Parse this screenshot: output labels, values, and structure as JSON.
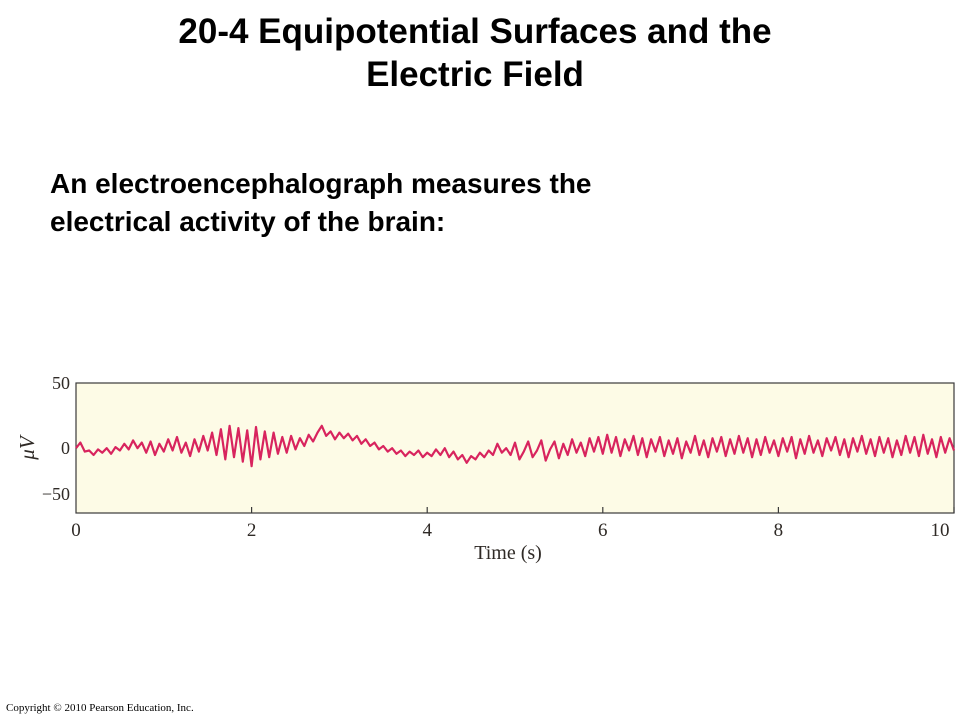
{
  "slide": {
    "title_line1": "20-4 Equipotential Surfaces and the",
    "title_line2": "Electric Field",
    "body_line1": "An electroencephalograph measures the",
    "body_line2": "electrical activity of the brain:",
    "copyright": "Copyright © 2010 Pearson Education, Inc."
  },
  "chart_data": {
    "type": "line",
    "xlabel": "Time (s)",
    "ylabel": "μV",
    "xlim": [
      0,
      10
    ],
    "ylim": [
      -50,
      50
    ],
    "xticks": [
      "0",
      "2",
      "4",
      "6",
      "8",
      "10"
    ],
    "yticks": [
      "50",
      "0",
      "−50"
    ],
    "grid": false,
    "legend": "none",
    "plot_background": "#fdfbe6",
    "line_color": "#d8245e",
    "series": [
      {
        "values": [
          [
            0.0,
            -2
          ],
          [
            0.05,
            3
          ],
          [
            0.1,
            -5
          ],
          [
            0.15,
            -4
          ],
          [
            0.2,
            -8
          ],
          [
            0.25,
            -3
          ],
          [
            0.3,
            -6
          ],
          [
            0.35,
            -2
          ],
          [
            0.4,
            -7
          ],
          [
            0.45,
            -1
          ],
          [
            0.5,
            -4
          ],
          [
            0.55,
            2
          ],
          [
            0.6,
            -3
          ],
          [
            0.65,
            5
          ],
          [
            0.7,
            -2
          ],
          [
            0.75,
            3
          ],
          [
            0.8,
            -6
          ],
          [
            0.85,
            4
          ],
          [
            0.9,
            -8
          ],
          [
            0.95,
            2
          ],
          [
            1.0,
            -5
          ],
          [
            1.05,
            6
          ],
          [
            1.1,
            -4
          ],
          [
            1.15,
            8
          ],
          [
            1.2,
            -6
          ],
          [
            1.25,
            3
          ],
          [
            1.3,
            -9
          ],
          [
            1.35,
            6
          ],
          [
            1.4,
            -5
          ],
          [
            1.45,
            9
          ],
          [
            1.5,
            -4
          ],
          [
            1.55,
            12
          ],
          [
            1.6,
            -8
          ],
          [
            1.65,
            15
          ],
          [
            1.7,
            -12
          ],
          [
            1.75,
            18
          ],
          [
            1.8,
            -10
          ],
          [
            1.85,
            16
          ],
          [
            1.9,
            -14
          ],
          [
            1.95,
            14
          ],
          [
            2.0,
            -18
          ],
          [
            2.05,
            17
          ],
          [
            2.1,
            -12
          ],
          [
            2.15,
            13
          ],
          [
            2.2,
            -10
          ],
          [
            2.25,
            12
          ],
          [
            2.3,
            -7
          ],
          [
            2.35,
            8
          ],
          [
            2.4,
            -6
          ],
          [
            2.45,
            9
          ],
          [
            2.5,
            -3
          ],
          [
            2.55,
            7
          ],
          [
            2.6,
            0
          ],
          [
            2.65,
            10
          ],
          [
            2.7,
            4
          ],
          [
            2.75,
            12
          ],
          [
            2.8,
            18
          ],
          [
            2.85,
            9
          ],
          [
            2.9,
            13
          ],
          [
            2.95,
            6
          ],
          [
            3.0,
            12
          ],
          [
            3.05,
            7
          ],
          [
            3.1,
            11
          ],
          [
            3.15,
            5
          ],
          [
            3.2,
            9
          ],
          [
            3.25,
            2
          ],
          [
            3.3,
            6
          ],
          [
            3.35,
            0
          ],
          [
            3.4,
            3
          ],
          [
            3.45,
            -3
          ],
          [
            3.5,
            0
          ],
          [
            3.55,
            -5
          ],
          [
            3.6,
            -2
          ],
          [
            3.65,
            -7
          ],
          [
            3.7,
            -4
          ],
          [
            3.75,
            -9
          ],
          [
            3.8,
            -5
          ],
          [
            3.85,
            -8
          ],
          [
            3.9,
            -4
          ],
          [
            3.95,
            -10
          ],
          [
            4.0,
            -6
          ],
          [
            4.05,
            -9
          ],
          [
            4.1,
            -3
          ],
          [
            4.15,
            -8
          ],
          [
            4.2,
            -2
          ],
          [
            4.25,
            -10
          ],
          [
            4.3,
            -5
          ],
          [
            4.35,
            -12
          ],
          [
            4.4,
            -8
          ],
          [
            4.45,
            -15
          ],
          [
            4.5,
            -9
          ],
          [
            4.55,
            -12
          ],
          [
            4.6,
            -6
          ],
          [
            4.65,
            -10
          ],
          [
            4.7,
            -4
          ],
          [
            4.75,
            -8
          ],
          [
            4.8,
            2
          ],
          [
            4.85,
            -6
          ],
          [
            4.9,
            -2
          ],
          [
            4.95,
            -8
          ],
          [
            5.0,
            3
          ],
          [
            5.05,
            -12
          ],
          [
            5.1,
            -5
          ],
          [
            5.15,
            4
          ],
          [
            5.2,
            -10
          ],
          [
            5.25,
            -4
          ],
          [
            5.3,
            5
          ],
          [
            5.35,
            -13
          ],
          [
            5.4,
            -3
          ],
          [
            5.45,
            4
          ],
          [
            5.5,
            -11
          ],
          [
            5.55,
            2
          ],
          [
            5.6,
            -8
          ],
          [
            5.65,
            6
          ],
          [
            5.7,
            -6
          ],
          [
            5.75,
            3
          ],
          [
            5.8,
            -9
          ],
          [
            5.85,
            7
          ],
          [
            5.9,
            -5
          ],
          [
            5.95,
            8
          ],
          [
            6.0,
            -7
          ],
          [
            6.05,
            10
          ],
          [
            6.1,
            -6
          ],
          [
            6.15,
            8
          ],
          [
            6.2,
            -9
          ],
          [
            6.25,
            6
          ],
          [
            6.3,
            -4
          ],
          [
            6.35,
            9
          ],
          [
            6.4,
            -8
          ],
          [
            6.45,
            7
          ],
          [
            6.5,
            -10
          ],
          [
            6.55,
            6
          ],
          [
            6.6,
            -5
          ],
          [
            6.65,
            8
          ],
          [
            6.7,
            -9
          ],
          [
            6.75,
            5
          ],
          [
            6.8,
            -7
          ],
          [
            6.85,
            7
          ],
          [
            6.9,
            -11
          ],
          [
            6.95,
            4
          ],
          [
            7.0,
            -6
          ],
          [
            7.05,
            9
          ],
          [
            7.1,
            -8
          ],
          [
            7.15,
            5
          ],
          [
            7.2,
            -10
          ],
          [
            7.25,
            7
          ],
          [
            7.3,
            -5
          ],
          [
            7.35,
            8
          ],
          [
            7.4,
            -9
          ],
          [
            7.45,
            6
          ],
          [
            7.5,
            -7
          ],
          [
            7.55,
            9
          ],
          [
            7.6,
            -6
          ],
          [
            7.65,
            7
          ],
          [
            7.7,
            -10
          ],
          [
            7.75,
            6
          ],
          [
            7.8,
            -8
          ],
          [
            7.85,
            8
          ],
          [
            7.9,
            -6
          ],
          [
            7.95,
            5
          ],
          [
            8.0,
            -9
          ],
          [
            8.05,
            7
          ],
          [
            8.1,
            -5
          ],
          [
            8.15,
            8
          ],
          [
            8.2,
            -11
          ],
          [
            8.25,
            6
          ],
          [
            8.3,
            -7
          ],
          [
            8.35,
            9
          ],
          [
            8.4,
            -6
          ],
          [
            8.45,
            5
          ],
          [
            8.5,
            -9
          ],
          [
            8.55,
            7
          ],
          [
            8.6,
            -4
          ],
          [
            8.65,
            8
          ],
          [
            8.7,
            -8
          ],
          [
            8.75,
            6
          ],
          [
            8.8,
            -10
          ],
          [
            8.85,
            7
          ],
          [
            8.9,
            -5
          ],
          [
            8.95,
            9
          ],
          [
            9.0,
            -7
          ],
          [
            9.05,
            6
          ],
          [
            9.1,
            -9
          ],
          [
            9.15,
            8
          ],
          [
            9.2,
            -6
          ],
          [
            9.25,
            7
          ],
          [
            9.3,
            -10
          ],
          [
            9.35,
            5
          ],
          [
            9.4,
            -8
          ],
          [
            9.45,
            9
          ],
          [
            9.5,
            -6
          ],
          [
            9.55,
            8
          ],
          [
            9.6,
            -9
          ],
          [
            9.65,
            10
          ],
          [
            9.7,
            -7
          ],
          [
            9.75,
            6
          ],
          [
            9.8,
            -10
          ],
          [
            9.85,
            8
          ],
          [
            9.9,
            -6
          ],
          [
            9.95,
            7
          ],
          [
            10.0,
            -4
          ]
        ]
      }
    ]
  }
}
